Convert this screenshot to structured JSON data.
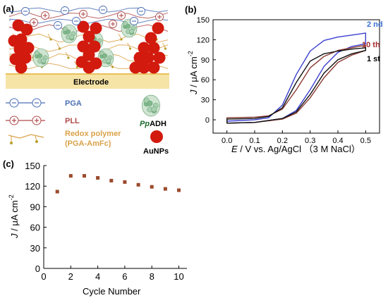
{
  "panels": {
    "a_label": "(a)",
    "b_label": "(b)",
    "c_label": "(c)"
  },
  "schematic": {
    "electrode_label": "Electrode",
    "legend": [
      {
        "key": "pga",
        "label": "PGA",
        "color": "#4b6fb5"
      },
      {
        "key": "pll",
        "label": "PLL",
        "color": "#b04a4a"
      },
      {
        "key": "redox",
        "label": "Redox polymer",
        "label2": "(PGA-AmFc)",
        "color": "#d9a24a"
      }
    ],
    "enzyme_label_prefix": "Pp",
    "enzyme_label_suffix": "ADH",
    "aunp_label": "AuNPs",
    "colors": {
      "aunp": "#d21a0e",
      "electrode": "#f6e3a6",
      "pga": "#4b6fb5",
      "pll": "#b04a4a",
      "redox": "#d9a24a",
      "enzyme": "#7fb88a"
    }
  },
  "chart_data": [
    {
      "panel": "b",
      "type": "line",
      "xlabel_italic": "E",
      "xlabel_rest": " / V vs. Ag/AgCl （3 M NaCl）",
      "ylabel_italic": "J",
      "ylabel_rest": " / μA cm",
      "ylabel_sup": "-2",
      "xlim": [
        -0.05,
        0.55
      ],
      "ylim": [
        -20,
        150
      ],
      "xticks": [
        "0.0",
        "0.1",
        "0.2",
        "0.3",
        "0.4",
        "0.5"
      ],
      "yticks": [
        "0",
        "30",
        "60",
        "90",
        "120",
        "150"
      ],
      "grid": false,
      "legend_position": "top-right",
      "series": [
        {
          "name": "2 nd",
          "color": "#3a3fd0",
          "forward": [
            [
              0,
              -2
            ],
            [
              0.1,
              0
            ],
            [
              0.15,
              3
            ],
            [
              0.2,
              22
            ],
            [
              0.25,
              68
            ],
            [
              0.3,
              103
            ],
            [
              0.35,
              119
            ],
            [
              0.4,
              124
            ],
            [
              0.45,
              127
            ],
            [
              0.5,
              130
            ]
          ],
          "reverse": [
            [
              0.5,
              114
            ],
            [
              0.45,
              110
            ],
            [
              0.4,
              101
            ],
            [
              0.35,
              80
            ],
            [
              0.3,
              45
            ],
            [
              0.25,
              14
            ],
            [
              0.2,
              2
            ],
            [
              0.1,
              -4
            ],
            [
              0,
              -5
            ]
          ]
        },
        {
          "name": "10 th",
          "color": "#8a3a32",
          "forward": [
            [
              0,
              3
            ],
            [
              0.1,
              4
            ],
            [
              0.15,
              6
            ],
            [
              0.2,
              16
            ],
            [
              0.25,
              45
            ],
            [
              0.3,
              78
            ],
            [
              0.35,
              95
            ],
            [
              0.4,
              104
            ],
            [
              0.45,
              108
            ],
            [
              0.5,
              112
            ]
          ],
          "reverse": [
            [
              0.5,
              104
            ],
            [
              0.45,
              97
            ],
            [
              0.4,
              86
            ],
            [
              0.35,
              63
            ],
            [
              0.3,
              33
            ],
            [
              0.25,
              10
            ],
            [
              0.2,
              1
            ],
            [
              0.1,
              -4
            ],
            [
              0,
              -5
            ]
          ]
        },
        {
          "name": "1 st",
          "color": "#111111",
          "forward": [
            [
              0,
              1
            ],
            [
              0.1,
              2
            ],
            [
              0.15,
              5
            ],
            [
              0.2,
              18
            ],
            [
              0.25,
              56
            ],
            [
              0.3,
              88
            ],
            [
              0.35,
              99
            ],
            [
              0.4,
              103
            ],
            [
              0.45,
              106
            ],
            [
              0.5,
              108
            ]
          ],
          "reverse": [
            [
              0.5,
              104
            ],
            [
              0.45,
              99
            ],
            [
              0.4,
              90
            ],
            [
              0.35,
              70
            ],
            [
              0.3,
              38
            ],
            [
              0.25,
              12
            ],
            [
              0.2,
              2
            ],
            [
              0.1,
              -4
            ],
            [
              0,
              -5
            ]
          ]
        }
      ]
    },
    {
      "panel": "c",
      "type": "scatter",
      "xlabel": "Cycle Number",
      "ylabel_italic": "J",
      "ylabel_rest": " / μA cm",
      "ylabel_sup": "-2",
      "xlim": [
        0,
        10.6
      ],
      "ylim": [
        0,
        150
      ],
      "xticks": [
        "0",
        "2",
        "4",
        "6",
        "8",
        "10"
      ],
      "yticks": [
        "0",
        "30",
        "60",
        "90",
        "120",
        "150"
      ],
      "grid": false,
      "marker_color": "#9b4a2c",
      "x": [
        1,
        2,
        3,
        4,
        5,
        6,
        7,
        8,
        9,
        10
      ],
      "y": [
        112,
        135,
        135,
        132,
        128,
        126,
        122,
        119,
        116,
        114
      ]
    }
  ]
}
